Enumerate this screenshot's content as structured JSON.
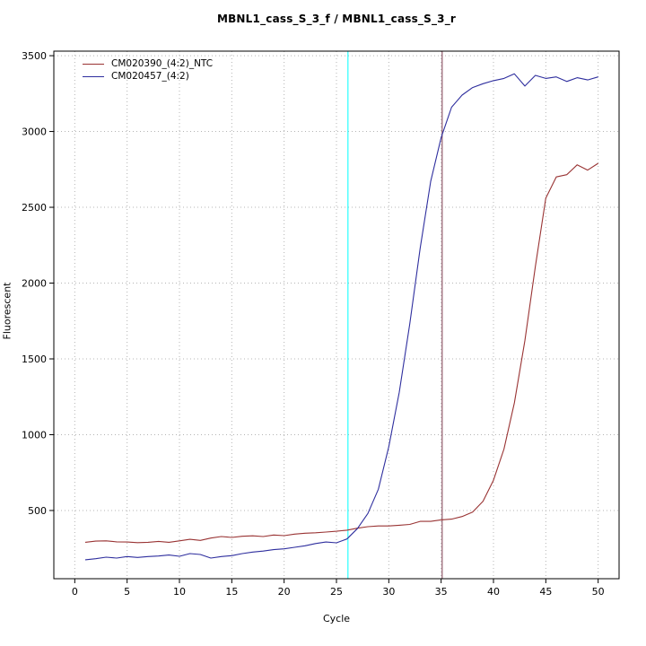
{
  "chart_data": {
    "type": "line",
    "title": "MBNL1_cass_S_3_f / MBNL1_cass_S_3_r",
    "xlabel": "Cycle",
    "ylabel": "Fluorescent",
    "xlim": [
      -2,
      52
    ],
    "ylim": [
      50,
      3530
    ],
    "x_ticks": [
      0,
      5,
      10,
      15,
      20,
      25,
      30,
      35,
      40,
      45,
      50
    ],
    "y_ticks": [
      500,
      1000,
      1500,
      2000,
      2500,
      3000,
      3500
    ],
    "grid": true,
    "grid_color": "#b4b4b4",
    "legend_position": "top-left",
    "x": [
      1,
      2,
      3,
      4,
      5,
      6,
      7,
      8,
      9,
      10,
      11,
      12,
      13,
      14,
      15,
      16,
      17,
      18,
      19,
      20,
      21,
      22,
      23,
      24,
      25,
      26,
      27,
      28,
      29,
      30,
      31,
      32,
      33,
      34,
      35,
      36,
      37,
      38,
      39,
      40,
      41,
      42,
      43,
      44,
      45,
      46,
      47,
      48,
      49,
      50
    ],
    "series": [
      {
        "name": "CM020390_(4:2)_NTC",
        "color": "#993333",
        "values": [
          290,
          298,
          300,
          293,
          292,
          288,
          290,
          296,
          290,
          300,
          310,
          303,
          318,
          328,
          322,
          330,
          333,
          328,
          338,
          334,
          344,
          350,
          353,
          358,
          363,
          370,
          383,
          393,
          398,
          398,
          403,
          408,
          428,
          428,
          438,
          443,
          460,
          490,
          560,
          700,
          905,
          1210,
          1620,
          2110,
          2560,
          2700,
          2715,
          2780,
          2745,
          2790
        ]
      },
      {
        "name": "CM020457_(4:2)",
        "color": "#2e2e9e",
        "values": [
          175,
          182,
          192,
          186,
          196,
          190,
          196,
          200,
          206,
          198,
          216,
          210,
          186,
          196,
          202,
          216,
          226,
          232,
          242,
          247,
          257,
          267,
          282,
          292,
          287,
          312,
          380,
          480,
          640,
          920,
          1280,
          1730,
          2230,
          2670,
          2960,
          3160,
          3240,
          3290,
          3315,
          3335,
          3350,
          3380,
          3300,
          3370,
          3350,
          3360,
          3330,
          3355,
          3340,
          3360
        ]
      }
    ],
    "vlines": [
      {
        "x": 26.1,
        "color": "#00ffff"
      },
      {
        "x": 35.1,
        "color": "#7c3b4f"
      }
    ]
  }
}
